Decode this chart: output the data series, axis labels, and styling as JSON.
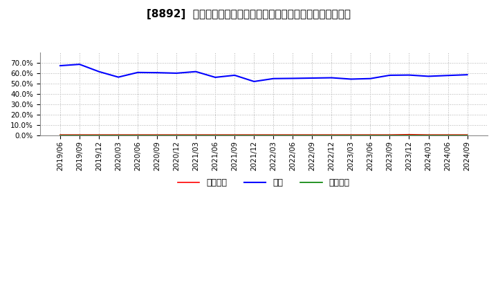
{
  "title": "[8892]  売上債権、在庫、買入債務の総資産に対する比率の推移",
  "x_labels": [
    "2019/06",
    "2019/09",
    "2019/12",
    "2020/03",
    "2020/06",
    "2020/09",
    "2020/12",
    "2021/03",
    "2021/06",
    "2021/09",
    "2021/12",
    "2022/03",
    "2022/06",
    "2022/09",
    "2022/12",
    "2023/03",
    "2023/06",
    "2023/09",
    "2023/12",
    "2024/03",
    "2024/06",
    "2024/09"
  ],
  "inventory": [
    0.672,
    0.685,
    0.615,
    0.562,
    0.607,
    0.605,
    0.6,
    0.615,
    0.56,
    0.58,
    0.52,
    0.548,
    0.55,
    0.553,
    0.556,
    0.543,
    0.548,
    0.58,
    0.582,
    0.57,
    0.578,
    0.585
  ],
  "receivables": [
    0.007,
    0.007,
    0.007,
    0.007,
    0.007,
    0.007,
    0.007,
    0.007,
    0.007,
    0.007,
    0.007,
    0.007,
    0.007,
    0.007,
    0.007,
    0.007,
    0.007,
    0.007,
    0.01,
    0.007,
    0.007,
    0.007
  ],
  "payables": [
    0.003,
    0.003,
    0.003,
    0.003,
    0.003,
    0.003,
    0.003,
    0.003,
    0.003,
    0.003,
    0.003,
    0.003,
    0.003,
    0.003,
    0.003,
    0.003,
    0.003,
    0.003,
    0.003,
    0.003,
    0.003,
    0.003
  ],
  "inventory_color": "#0000ff",
  "receivables_color": "#ff0000",
  "payables_color": "#008000",
  "background_color": "#ffffff",
  "grid_color": "#b0b0b0",
  "ylim": [
    0.0,
    0.8
  ],
  "yticks": [
    0.0,
    0.1,
    0.2,
    0.3,
    0.4,
    0.5,
    0.6,
    0.7
  ],
  "legend_labels": [
    "売上債権",
    "在庫",
    "買入債務"
  ],
  "title_fontsize": 11,
  "tick_fontsize": 7.5,
  "legend_fontsize": 9
}
